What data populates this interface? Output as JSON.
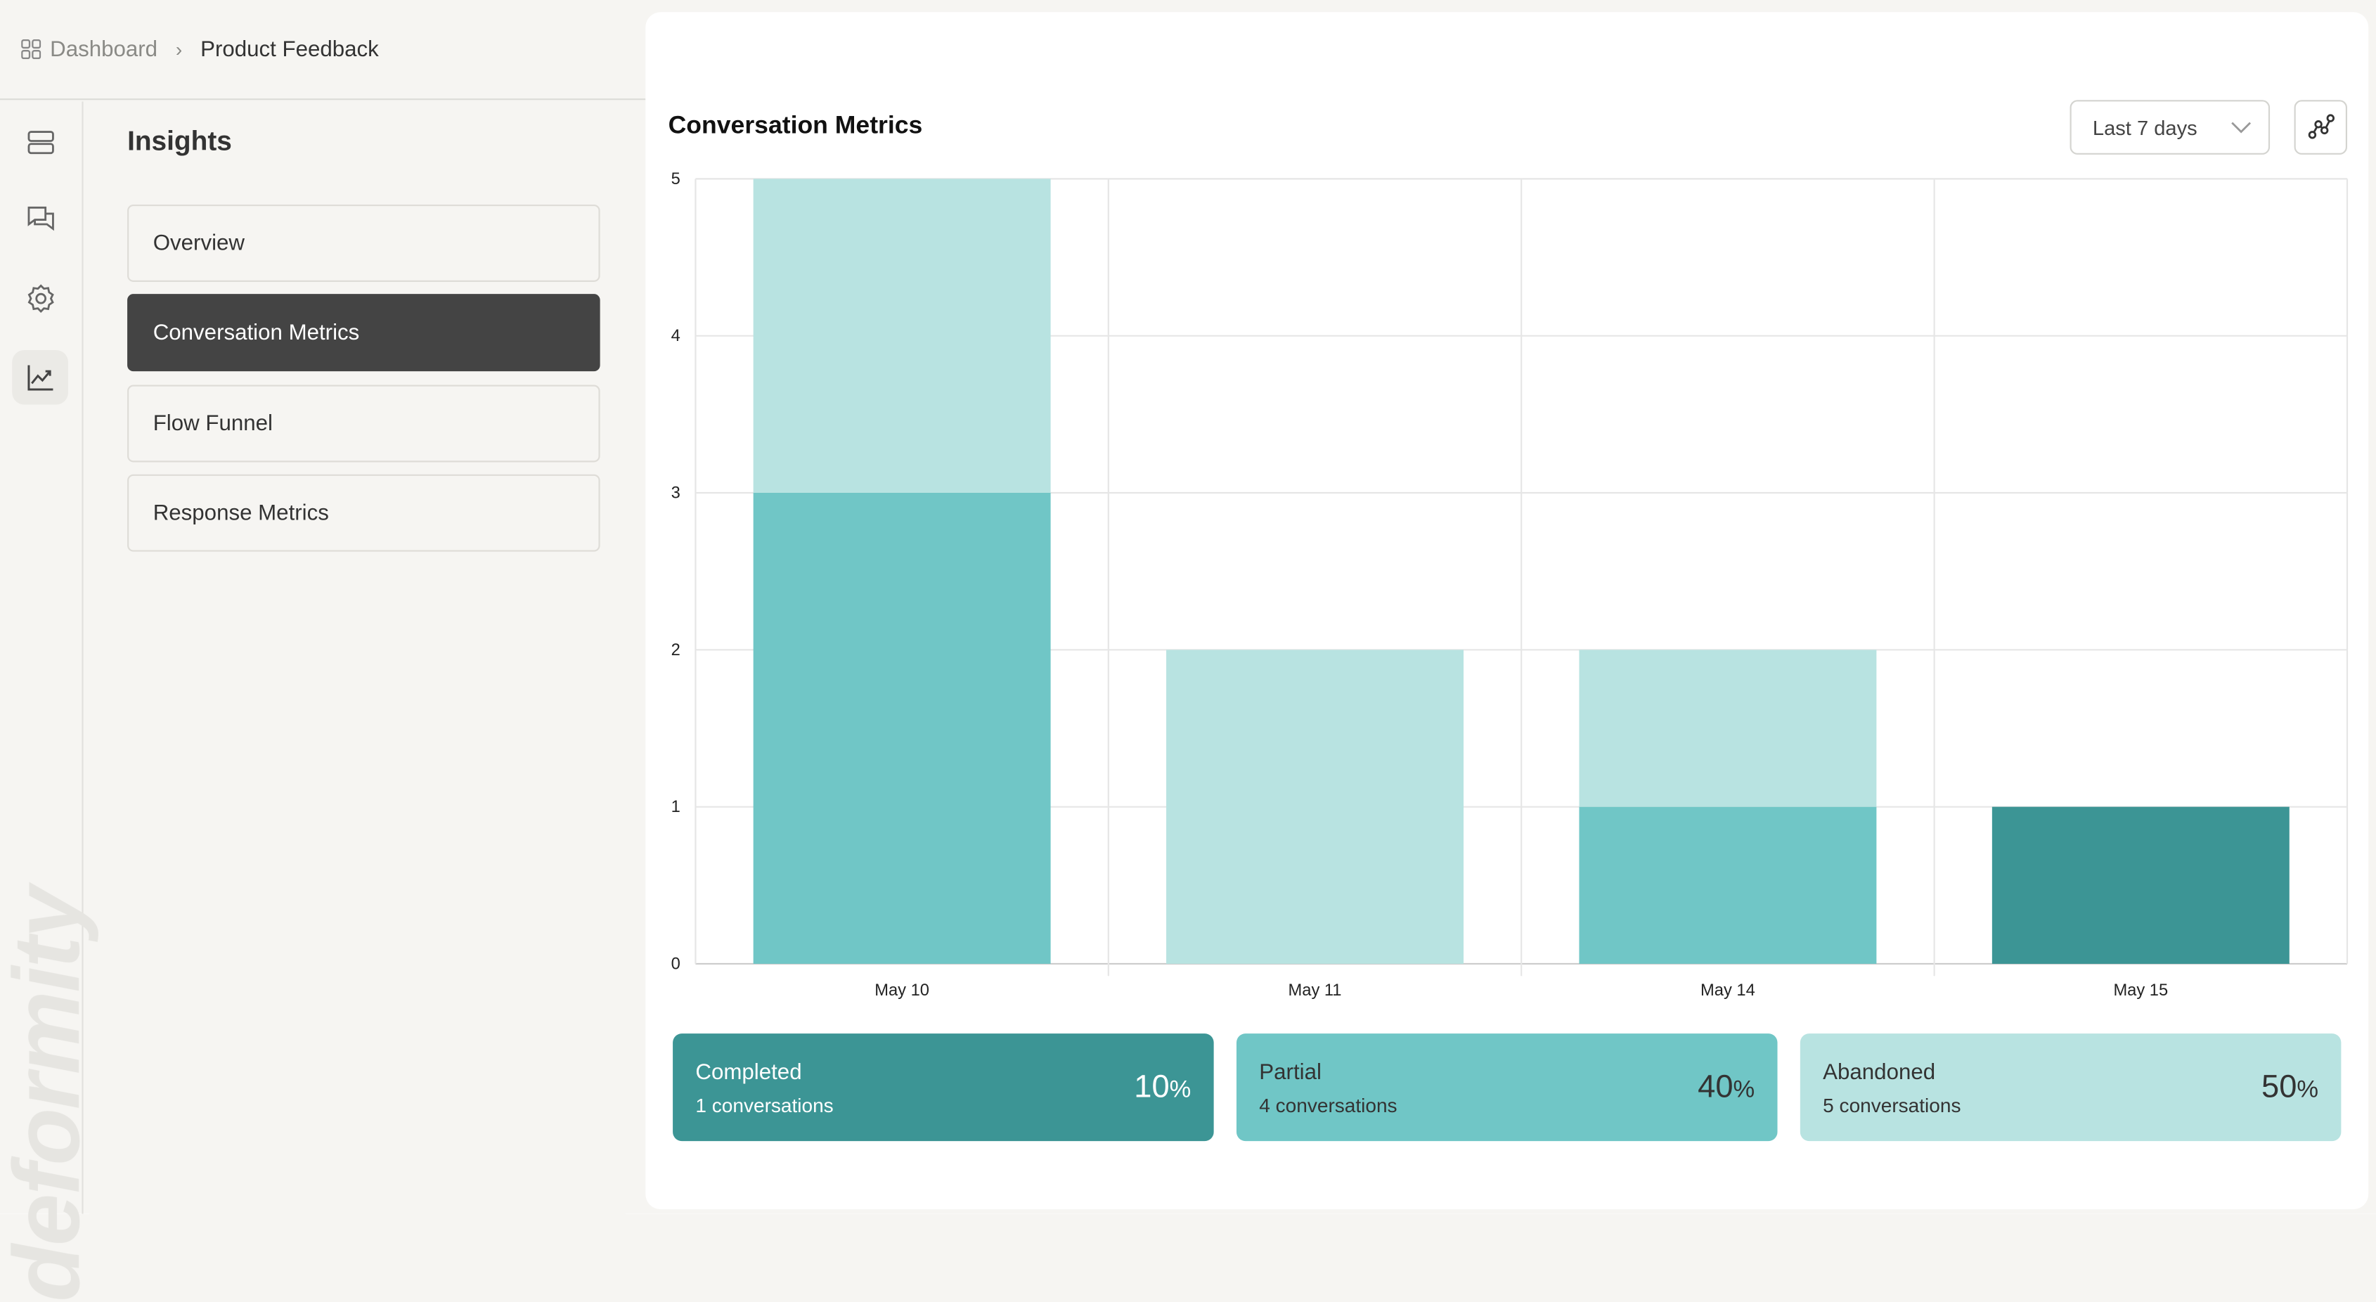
{
  "breadcrumb": {
    "root": "Dashboard",
    "current": "Product Feedback"
  },
  "watermark": "deformity",
  "rail": {
    "items": [
      "layout-rows-icon",
      "chat-icon",
      "gear-icon",
      "chart-line-icon"
    ],
    "active": 3
  },
  "nav": {
    "title": "Insights",
    "items": [
      {
        "label": "Overview"
      },
      {
        "label": "Conversation Metrics",
        "active": true
      },
      {
        "label": "Flow Funnel"
      },
      {
        "label": "Response Metrics"
      }
    ]
  },
  "main": {
    "title": "Conversation Metrics",
    "range": "Last 7 days"
  },
  "chart_data": {
    "type": "bar",
    "stacked": true,
    "categories": [
      "May 10",
      "May 11",
      "May 14",
      "May 15"
    ],
    "series": [
      {
        "name": "Completed",
        "values": [
          0,
          0,
          0,
          1
        ],
        "color": "#3c9595"
      },
      {
        "name": "Partial",
        "values": [
          3,
          0,
          1,
          0
        ],
        "color": "#70c6c6"
      },
      {
        "name": "Abandoned",
        "values": [
          2,
          2,
          1,
          0
        ],
        "color": "#b8e3e1"
      }
    ],
    "ylim": [
      0,
      5
    ],
    "yticks": [
      "0",
      "1",
      "2",
      "3",
      "4",
      "5"
    ],
    "grid": true
  },
  "summary": [
    {
      "label": "Completed",
      "sub": "1 conversations",
      "value": "10",
      "unit": "%",
      "color": "#3c9595",
      "text": "#ffffff"
    },
    {
      "label": "Partial",
      "sub": "4 conversations",
      "value": "40",
      "unit": "%",
      "color": "#70c6c6",
      "text": "#333333"
    },
    {
      "label": "Abandoned",
      "sub": "5 conversations",
      "value": "50",
      "unit": "%",
      "color": "#b8e3e1",
      "text": "#333333"
    }
  ]
}
